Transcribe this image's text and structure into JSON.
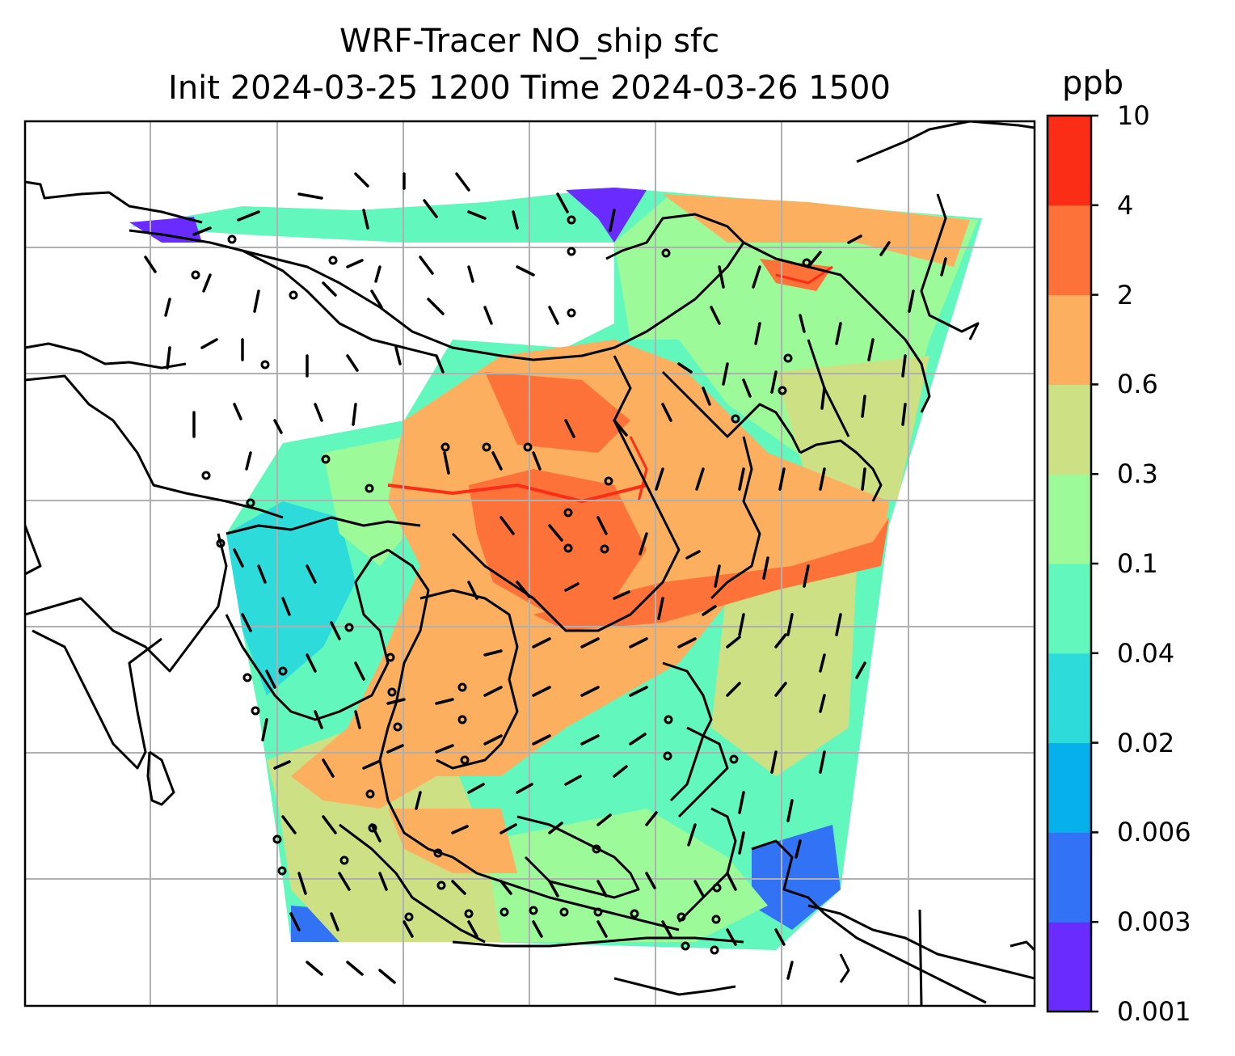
{
  "title": {
    "line1": "WRF-Tracer NO_ship sfc",
    "line2": "Init 2024-03-25 1200 Time 2024-03-26 1500"
  },
  "colorbar": {
    "unit": "ppb",
    "ticks": [
      "0.001",
      "0.003",
      "0.006",
      "0.02",
      "0.04",
      "0.1",
      "0.3",
      "0.6",
      "2",
      "4",
      "10"
    ],
    "colors": [
      "#6a2bff",
      "#3273f5",
      "#05b0eb",
      "#2ddbdb",
      "#61f7bd",
      "#9cfa99",
      "#cde184",
      "#fbaf5f",
      "#fd7239",
      "#fc2d17"
    ]
  },
  "map": {
    "background": "#ffffff",
    "gridline_color": "#b0b0b0",
    "coastline_color": "#000000",
    "overlay": "wind barbs and calm circles"
  }
}
